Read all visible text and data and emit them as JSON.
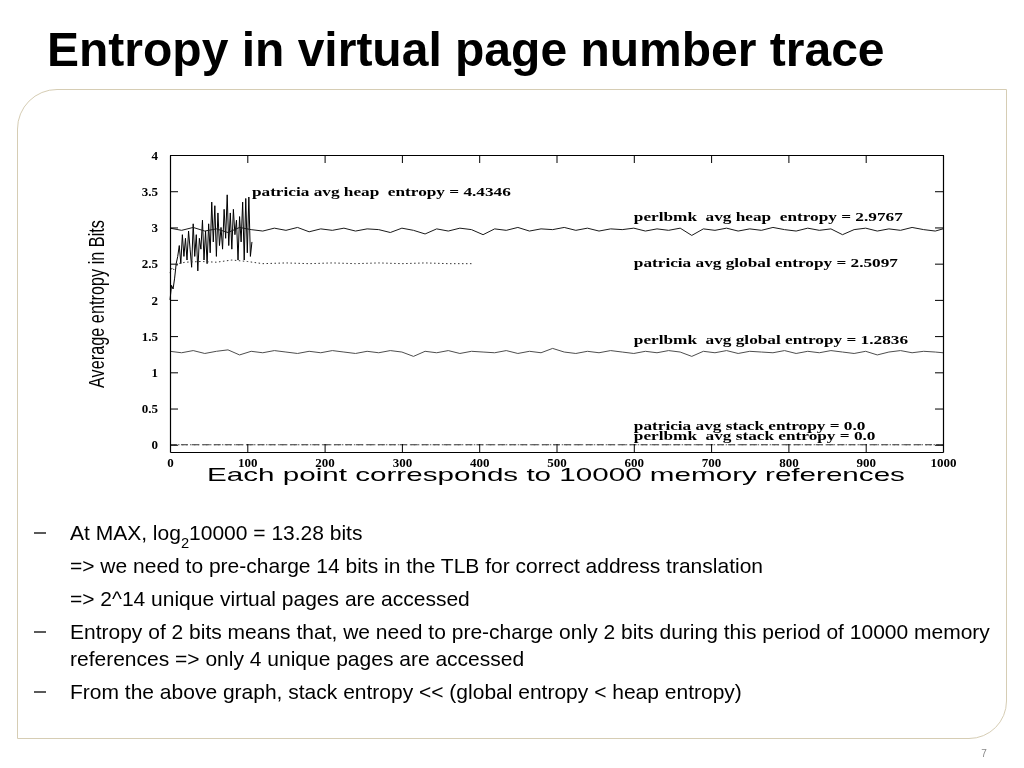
{
  "chart_data": {
    "type": "line",
    "title": "Entropy in virtual page number trace",
    "xlabel": "Each point corresponds to 10000 memory references",
    "ylabel": "Average entropy in Bits",
    "xlim": [
      0,
      1000
    ],
    "xticks": [
      0,
      100,
      200,
      300,
      400,
      500,
      600,
      700,
      800,
      900,
      1000
    ],
    "ylim": [
      -0.1,
      4
    ],
    "yticks": [
      0,
      0.5,
      1,
      1.5,
      2,
      2.5,
      3,
      3.5,
      4
    ],
    "series": [
      {
        "color": "#000000",
        "line_style": "solid",
        "x": [
          0,
          2,
          4,
          6,
          8,
          10,
          12,
          14,
          16,
          18,
          20,
          22,
          24,
          26,
          28,
          30,
          32,
          34,
          36,
          38,
          40,
          42,
          44,
          46,
          48,
          50,
          52,
          54,
          56,
          58,
          60,
          62,
          64,
          66,
          68,
          70,
          72,
          74,
          76,
          78,
          80,
          82,
          84,
          86,
          88,
          90,
          92,
          94,
          96,
          98,
          100,
          102,
          104,
          106
        ],
        "values": [
          2.0,
          2.2,
          2.15,
          2.3,
          2.5,
          2.6,
          2.75,
          2.5,
          2.9,
          2.6,
          2.85,
          2.55,
          2.95,
          2.7,
          2.45,
          3.05,
          2.6,
          2.9,
          2.4,
          2.85,
          2.7,
          3.1,
          2.55,
          2.95,
          2.5,
          3.05,
          2.65,
          3.35,
          2.8,
          3.3,
          2.6,
          3.2,
          2.75,
          3.0,
          2.7,
          3.25,
          2.85,
          3.45,
          2.75,
          3.2,
          2.7,
          3.25,
          2.9,
          3.1,
          2.55,
          3.15,
          2.8,
          3.35,
          2.55,
          3.4,
          2.65,
          3.42,
          2.6,
          2.8
        ]
      },
      {
        "color": "#1a1a1a",
        "line_style": "solid",
        "x": [
          0,
          15,
          30,
          45,
          60,
          75,
          90,
          105,
          120,
          135,
          150,
          165,
          180,
          195,
          210,
          225,
          240,
          255,
          270,
          285,
          300,
          315,
          330,
          345,
          360,
          375,
          390,
          405,
          420,
          435,
          450,
          465,
          480,
          495,
          510,
          525,
          540,
          555,
          570,
          585,
          600,
          615,
          630,
          645,
          660,
          675,
          690,
          705,
          720,
          735,
          750,
          765,
          780,
          795,
          810,
          825,
          840,
          855,
          870,
          885,
          900,
          915,
          930,
          945,
          960,
          975,
          990,
          1000
        ],
        "values": [
          2.99,
          2.96,
          3.0,
          2.95,
          2.98,
          2.93,
          3.0,
          2.97,
          2.95,
          2.99,
          2.96,
          3.0,
          2.94,
          2.98,
          2.96,
          2.99,
          2.95,
          2.98,
          2.97,
          2.93,
          2.99,
          2.96,
          2.91,
          2.98,
          2.95,
          2.99,
          2.97,
          2.9,
          2.98,
          2.96,
          3.0,
          2.95,
          2.98,
          2.97,
          3.0,
          2.96,
          2.99,
          2.95,
          2.98,
          2.97,
          2.99,
          2.95,
          2.98,
          2.96,
          2.99,
          2.89,
          2.98,
          2.96,
          2.99,
          2.95,
          2.98,
          2.96,
          3.0,
          2.97,
          2.95,
          2.99,
          2.96,
          2.98,
          2.9,
          2.97,
          2.99,
          2.95,
          2.98,
          2.96,
          3.0,
          2.97,
          2.95,
          2.98
        ]
      },
      {
        "color": "#333333",
        "line_style": "dotted",
        "x": [
          0,
          3,
          6,
          10,
          20,
          40,
          60,
          80,
          100,
          120,
          150,
          180,
          210,
          240,
          270,
          300,
          330,
          360,
          390
        ],
        "values": [
          2.37,
          2.45,
          2.4,
          2.5,
          2.52,
          2.53,
          2.52,
          2.55,
          2.53,
          2.5,
          2.51,
          2.5,
          2.51,
          2.5,
          2.51,
          2.5,
          2.51,
          2.5,
          2.5
        ]
      },
      {
        "color": "#4d4d4d",
        "line_style": "solid",
        "x": [
          0,
          15,
          30,
          45,
          60,
          75,
          90,
          105,
          120,
          135,
          150,
          165,
          180,
          195,
          210,
          225,
          240,
          255,
          270,
          285,
          300,
          315,
          330,
          345,
          360,
          375,
          390,
          405,
          420,
          435,
          450,
          465,
          480,
          495,
          510,
          525,
          540,
          555,
          570,
          585,
          600,
          615,
          630,
          645,
          660,
          675,
          690,
          705,
          720,
          735,
          750,
          765,
          780,
          795,
          810,
          825,
          840,
          855,
          870,
          885,
          900,
          915,
          930,
          945,
          960,
          975,
          990,
          1000
        ],
        "values": [
          1.29,
          1.27,
          1.3,
          1.26,
          1.29,
          1.31,
          1.24,
          1.29,
          1.27,
          1.3,
          1.28,
          1.26,
          1.29,
          1.27,
          1.3,
          1.28,
          1.26,
          1.29,
          1.27,
          1.3,
          1.28,
          1.22,
          1.29,
          1.27,
          1.3,
          1.26,
          1.29,
          1.28,
          1.27,
          1.3,
          1.26,
          1.29,
          1.27,
          1.33,
          1.28,
          1.26,
          1.29,
          1.27,
          1.3,
          1.28,
          1.26,
          1.29,
          1.27,
          1.3,
          1.28,
          1.22,
          1.29,
          1.27,
          1.3,
          1.26,
          1.29,
          1.28,
          1.27,
          1.3,
          1.26,
          1.29,
          1.27,
          1.3,
          1.28,
          1.26,
          1.29,
          1.24,
          1.28,
          1.3,
          1.27,
          1.29,
          1.28,
          1.27
        ]
      },
      {
        "color": "#333333",
        "line_style": "dashed",
        "x": [
          0,
          1000
        ],
        "values": [
          0,
          0
        ]
      },
      {
        "color": "#555555",
        "line_style": "dotted",
        "x": [
          0,
          1000
        ],
        "values": [
          0,
          0
        ]
      }
    ],
    "annotations": [
      "patricia avg heap  entropy = 4.4346",
      "perlbmk  avg heap  entropy = 2.9767",
      "patricia avg global entropy = 2.5097",
      "perlbmk  avg global entropy = 1.2836",
      "patricia avg stack entropy = 0.0",
      "perlbmk  avg stack entropy = 0.0",
      "At MAX, log$_{2}$10000 = 13.28 bits\n=> we need to pre-charge 14 bits in the TLB for correct address translation\n=> 2^14 unique virtual pages are accessed",
      "Entropy of 2 bits means that, we need to pre-charge only 2 bits during this period of 10000 memory references => only 4 unique pages are accessed",
      "From the above graph, stack entropy << (global entropy < heap entropy)",
      "7"
    ]
  }
}
